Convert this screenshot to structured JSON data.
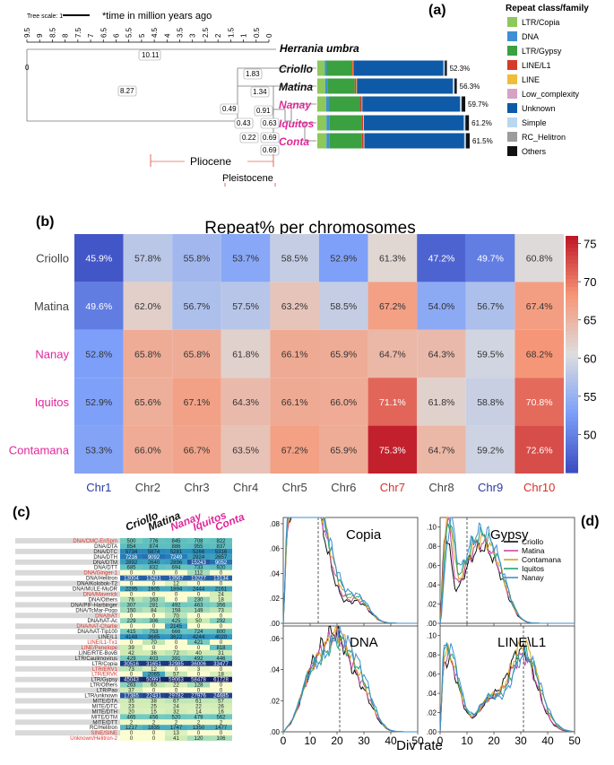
{
  "panel_a": {
    "label": "(a)",
    "tree_scale_label": "Tree scale: 1",
    "time_note": "*time in million years ago",
    "axis_ticks": [
      "9.5",
      "9",
      "8.5",
      "8",
      "7.5",
      "7",
      "6.5",
      "6",
      "5.5",
      "5",
      "4.5",
      "4",
      "3.5",
      "3",
      "2.5",
      "2",
      "1.5",
      "1",
      "0.5",
      "0"
    ],
    "outgroup": "Herrania umbra",
    "taxa": [
      {
        "name": "Criollo",
        "color": "#111111",
        "pct": "52.3%",
        "segments": {
          "LTR/Copia": 3.0,
          "DNA": 0.8,
          "LTR/Gypsy": 10.0,
          "LINE/L1": 0.5,
          "LINE": 0.2,
          "Low_complexity": 0.1,
          "Unknown": 36.3,
          "Simple": 0.5,
          "RC_Helitron": 0.1,
          "Others": 0.8
        }
      },
      {
        "name": "Matina",
        "color": "#111111",
        "pct": "56.3%",
        "segments": {
          "LTR/Copia": 3.2,
          "DNA": 0.9,
          "LTR/Gypsy": 11.0,
          "LINE/L1": 0.6,
          "LINE": 0.2,
          "Low_complexity": 0.1,
          "Unknown": 38.7,
          "Simple": 0.6,
          "RC_Helitron": 0.1,
          "Others": 0.9
        }
      },
      {
        "name": "Nanay",
        "color": "#e0289a",
        "pct": "59.7%",
        "segments": {
          "LTR/Copia": 3.6,
          "DNA": 1.1,
          "LTR/Gypsy": 12.5,
          "LINE/L1": 0.7,
          "LINE": 0.2,
          "Low_complexity": 0.1,
          "Unknown": 39.4,
          "Simple": 0.6,
          "RC_Helitron": 0.1,
          "Others": 1.4
        }
      },
      {
        "name": "Iquitos",
        "color": "#e0289a",
        "pct": "61.2%",
        "segments": {
          "LTR/Copia": 3.7,
          "DNA": 1.1,
          "LTR/Gypsy": 13.0,
          "LINE/L1": 0.7,
          "LINE": 0.2,
          "Low_complexity": 0.1,
          "Unknown": 40.3,
          "Simple": 0.6,
          "RC_Helitron": 0.1,
          "Others": 1.4
        }
      },
      {
        "name": "Conta",
        "color": "#e0289a",
        "pct": "61.5%",
        "segments": {
          "LTR/Copia": 3.7,
          "DNA": 1.1,
          "LTR/Gypsy": 13.2,
          "LINE/L1": 0.7,
          "LINE": 0.2,
          "Low_complexity": 0.1,
          "Unknown": 40.3,
          "Simple": 0.6,
          "RC_Helitron": 0.1,
          "Others": 1.5
        }
      }
    ],
    "node_labels": [
      "10.11",
      "8.27",
      "1.83",
      "1.34",
      "0.91",
      "0.49",
      "0.43",
      "0.63",
      "0.22",
      "0.69",
      "0.69",
      "0"
    ],
    "epochs": [
      "Pliocene",
      "Pleistocene"
    ],
    "legend_title": "Repeat class/family",
    "legend": [
      {
        "name": "LTR/Copia",
        "color": "#8cc85a"
      },
      {
        "name": "DNA",
        "color": "#3f8fd2"
      },
      {
        "name": "LTR/Gypsy",
        "color": "#3aa040"
      },
      {
        "name": "LINE/L1",
        "color": "#d33b2a"
      },
      {
        "name": "LINE",
        "color": "#f0bd3a"
      },
      {
        "name": "Low_complexity",
        "color": "#d6a2c6"
      },
      {
        "name": "Unknown",
        "color": "#0e5aa7"
      },
      {
        "name": "Simple",
        "color": "#b9d7ef"
      },
      {
        "name": "RC_Helitron",
        "color": "#9c9c9c"
      },
      {
        "name": "Others",
        "color": "#111111"
      }
    ]
  },
  "panel_b": {
    "label": "(b)",
    "chart_data": {
      "type": "heatmap",
      "title": "Repeat% per chromosomes",
      "rows": [
        {
          "name": "Criollo",
          "color": "#444444"
        },
        {
          "name": "Matina",
          "color": "#444444"
        },
        {
          "name": "Nanay",
          "color": "#e0289a"
        },
        {
          "name": "Iquitos",
          "color": "#e0289a"
        },
        {
          "name": "Contamana",
          "color": "#e0289a"
        }
      ],
      "columns": [
        {
          "name": "Chr1",
          "color": "#2b3b9e"
        },
        {
          "name": "Chr2",
          "color": "#444444"
        },
        {
          "name": "Chr3",
          "color": "#444444"
        },
        {
          "name": "Chr4",
          "color": "#444444"
        },
        {
          "name": "Chr5",
          "color": "#444444"
        },
        {
          "name": "Chr6",
          "color": "#444444"
        },
        {
          "name": "Chr7",
          "color": "#d6302a"
        },
        {
          "name": "Chr8",
          "color": "#444444"
        },
        {
          "name": "Chr9",
          "color": "#2b3b9e"
        },
        {
          "name": "Chr10",
          "color": "#d6302a"
        }
      ],
      "values": [
        [
          45.9,
          57.8,
          55.8,
          53.7,
          58.5,
          52.9,
          61.3,
          47.2,
          49.7,
          60.8
        ],
        [
          49.6,
          62.0,
          56.7,
          57.5,
          63.2,
          58.5,
          67.2,
          54.0,
          56.7,
          67.4
        ],
        [
          52.8,
          65.8,
          65.8,
          61.8,
          66.1,
          65.9,
          64.7,
          64.3,
          59.5,
          68.2
        ],
        [
          52.9,
          65.6,
          67.1,
          64.3,
          66.1,
          66.0,
          71.1,
          61.8,
          58.8,
          70.8
        ],
        [
          53.3,
          66.0,
          66.7,
          63.5,
          67.2,
          65.9,
          75.3,
          64.7,
          59.2,
          72.6
        ]
      ],
      "cell_labels": [
        [
          "45.9%",
          "57.8%",
          "55.8%",
          "53.7%",
          "58.5%",
          "52.9%",
          "61.3%",
          "47.2%",
          "49.7%",
          "60.8%"
        ],
        [
          "49.6%",
          "62.0%",
          "56.7%",
          "57.5%",
          "63.2%",
          "58.5%",
          "67.2%",
          "54.0%",
          "56.7%",
          "67.4%"
        ],
        [
          "52.8%",
          "65.8%",
          "65.8%",
          "61.8%",
          "66.1%",
          "65.9%",
          "64.7%",
          "64.3%",
          "59.5%",
          "68.2%"
        ],
        [
          "52.9%",
          "65.6%",
          "67.1%",
          "64.3%",
          "66.1%",
          "66.0%",
          "71.1%",
          "61.8%",
          "58.8%",
          "70.8%"
        ],
        [
          "53.3%",
          "66.0%",
          "66.7%",
          "63.5%",
          "67.2%",
          "65.9%",
          "75.3%",
          "64.7%",
          "59.2%",
          "72.6%"
        ]
      ],
      "colorbar_ticks": [
        "75",
        "70",
        "65",
        "60",
        "55",
        "50"
      ],
      "colorbar_range": [
        45,
        76
      ]
    }
  },
  "panel_c": {
    "label": "(c)",
    "columns": [
      {
        "name": "Criollo",
        "color": "#111111"
      },
      {
        "name": "Matina",
        "color": "#111111"
      },
      {
        "name": "Nanay",
        "color": "#e0289a"
      },
      {
        "name": "Iquitos",
        "color": "#e0289a"
      },
      {
        "name": "Conta",
        "color": "#e0289a"
      }
    ],
    "rows": [
      {
        "name": "DNA/CMC-EnSpm",
        "red": true,
        "shade": true,
        "v": [
          "500",
          "776",
          "845",
          "708",
          "822"
        ]
      },
      {
        "name": "DNA/DTA",
        "red": false,
        "shade": false,
        "v": [
          "854",
          "874",
          "886",
          "955",
          "837"
        ]
      },
      {
        "name": "DNA/DTC",
        "red": false,
        "shade": true,
        "v": [
          "5734",
          "5874",
          "5281",
          "5266",
          "5316"
        ]
      },
      {
        "name": "DNA/DTH",
        "red": false,
        "shade": false,
        "v": [
          "7216",
          "9092",
          "7249",
          "2924",
          "2657"
        ]
      },
      {
        "name": "DNA/DTM",
        "red": false,
        "shade": true,
        "v": [
          "2892",
          "2640",
          "2896",
          "15243",
          "9052"
        ]
      },
      {
        "name": "DNA/DTT",
        "red": false,
        "shade": false,
        "v": [
          "685",
          "832",
          "694",
          "733",
          "920"
        ]
      },
      {
        "name": "DNA/Ginger-1",
        "red": true,
        "shade": true,
        "v": [
          "0",
          "0",
          "0",
          "112",
          "0"
        ]
      },
      {
        "name": "DNA/Helitron",
        "red": false,
        "shade": false,
        "v": [
          "13004",
          "13431",
          "13567",
          "13227",
          "13134"
        ]
      },
      {
        "name": "DNA/Kolobok-T2",
        "red": false,
        "shade": true,
        "v": [
          "0",
          "0",
          "12",
          "0",
          "0"
        ]
      },
      {
        "name": "DNA/MULE-MuDR",
        "red": false,
        "shade": false,
        "v": [
          "2295",
          "1905",
          "1894",
          "2444",
          "2161"
        ]
      },
      {
        "name": "DNA/Maverick",
        "red": true,
        "shade": true,
        "v": [
          "0",
          "0",
          "0",
          "0",
          "24"
        ]
      },
      {
        "name": "DNA/Others",
        "red": false,
        "shade": false,
        "v": [
          "76",
          "163",
          "0",
          "230",
          "18"
        ]
      },
      {
        "name": "DNA/PIF-Harbinger",
        "red": false,
        "shade": true,
        "v": [
          "307",
          "281",
          "492",
          "463",
          "356"
        ]
      },
      {
        "name": "DNA/TcMar-Pogo",
        "red": false,
        "shade": false,
        "v": [
          "150",
          "84",
          "158",
          "149",
          "73"
        ]
      },
      {
        "name": "DNA/hAT",
        "red": true,
        "shade": true,
        "v": [
          "0",
          "0",
          "70",
          "0",
          "0"
        ]
      },
      {
        "name": "DNA/hAT-Ac",
        "red": false,
        "shade": false,
        "v": [
          "229",
          "306",
          "425",
          "50",
          "292"
        ]
      },
      {
        "name": "DNA/hAT-Charlie",
        "red": true,
        "shade": true,
        "v": [
          "0",
          "0",
          "2145",
          "0",
          "0"
        ]
      },
      {
        "name": "DNA/hAT-Tip100",
        "red": false,
        "shade": false,
        "v": [
          "415",
          "753",
          "666",
          "724",
          "800"
        ]
      },
      {
        "name": "LINE/L1",
        "red": false,
        "shade": true,
        "v": [
          "4148",
          "3685",
          "3622",
          "4244",
          "4020"
        ]
      },
      {
        "name": "LINE/L1-Tx1",
        "red": true,
        "shade": false,
        "v": [
          "0",
          "70",
          "0",
          "421",
          "0"
        ]
      },
      {
        "name": "LINE/Penelope",
        "red": true,
        "shade": true,
        "v": [
          "39",
          "0",
          "0",
          "0",
          "818"
        ]
      },
      {
        "name": "LINE/RTE-BovB",
        "red": false,
        "shade": false,
        "v": [
          "42",
          "36",
          "72",
          "40",
          "31"
        ]
      },
      {
        "name": "LTR/Caulimovirus",
        "red": false,
        "shade": true,
        "v": [
          "429",
          "403",
          "391",
          "492",
          "446"
        ]
      },
      {
        "name": "LTR/Copia",
        "red": false,
        "shade": false,
        "v": [
          "30516",
          "31651",
          "32985",
          "36006",
          "33477"
        ]
      },
      {
        "name": "LTR/ERV1",
        "red": true,
        "shade": true,
        "v": [
          "73",
          "12",
          "0",
          "3",
          "0"
        ]
      },
      {
        "name": "LTR/ERVK",
        "red": true,
        "shade": false,
        "v": [
          "0",
          "2065",
          "57",
          "0",
          "18"
        ]
      },
      {
        "name": "LTR/Gypsy",
        "red": false,
        "shade": true,
        "v": [
          "45043",
          "50991",
          "59063",
          "58478",
          "61728"
        ]
      },
      {
        "name": "LTR/Others",
        "red": false,
        "shade": false,
        "v": [
          "263",
          "65",
          "22",
          "128",
          "0"
        ]
      },
      {
        "name": "LTR/Pao",
        "red": false,
        "shade": true,
        "v": [
          "37",
          "0",
          "0",
          "0",
          "0"
        ]
      },
      {
        "name": "LTR/unknown",
        "red": false,
        "shade": false,
        "v": [
          "17385",
          "22431",
          "29782",
          "27976",
          "24685"
        ]
      },
      {
        "name": "MITE/DTA",
        "red": false,
        "shade": true,
        "v": [
          "35",
          "38",
          "67",
          "61",
          "57"
        ]
      },
      {
        "name": "MITE/DTC",
        "red": false,
        "shade": false,
        "v": [
          "23",
          "25",
          "24",
          "22",
          "26"
        ]
      },
      {
        "name": "MITE/DTH",
        "red": false,
        "shade": true,
        "v": [
          "20",
          "15",
          "32",
          "14",
          "16"
        ]
      },
      {
        "name": "MITE/DTM",
        "red": false,
        "shade": false,
        "v": [
          "465",
          "456",
          "520",
          "479",
          "562"
        ]
      },
      {
        "name": "MITE/DTT",
        "red": false,
        "shade": true,
        "v": [
          "2",
          "2",
          "2",
          "2",
          "2"
        ]
      },
      {
        "name": "RC/Helitron",
        "red": false,
        "shade": false,
        "v": [
          "1217",
          "1835",
          "1747",
          "1350",
          "1477"
        ]
      },
      {
        "name": "SINE/SINE",
        "red": true,
        "shade": true,
        "v": [
          "0",
          "0",
          "13",
          "0",
          "0"
        ]
      },
      {
        "name": "Unknown/Helitron-2",
        "red": true,
        "shade": false,
        "v": [
          "0",
          "0",
          "41",
          "120",
          "106"
        ]
      }
    ]
  },
  "panel_d": {
    "label": "(d)",
    "xlabel": "Div rate",
    "x_ticks": [
      "0",
      "10",
      "20",
      "30",
      "40",
      "50"
    ],
    "legend": [
      {
        "name": "Criollo",
        "color": "#111111"
      },
      {
        "name": "Matina",
        "color": "#c64aa6"
      },
      {
        "name": "Contamana",
        "color": "#d9a21c"
      },
      {
        "name": "Iquitos",
        "color": "#20a37a"
      },
      {
        "name": "Nanay",
        "color": "#3f8fd2"
      }
    ],
    "chart_data": [
      {
        "type": "line",
        "title": "Copia",
        "xlim": [
          0,
          50
        ],
        "y_ticks": [
          ".00",
          ".02",
          ".04",
          ".06",
          ".08"
        ],
        "ylim": [
          0,
          0.085
        ],
        "dashed_x": 13,
        "peak": 13,
        "peak_y": [
          0.074,
          0.078,
          0.081,
          0.078,
          0.077
        ],
        "width": 5.5,
        "shoulder": [
          [
            4,
            0.055
          ],
          [
            7,
            0.06
          ],
          [
            28,
            0.018
          ]
        ]
      },
      {
        "type": "line",
        "title": "Gypsy",
        "xlim": [
          0,
          50
        ],
        "y_ticks": [
          ".00",
          ".02",
          ".04",
          ".06",
          ".08",
          ".10"
        ],
        "ylim": [
          0,
          0.11
        ],
        "dashed_x": 10,
        "peak": 3,
        "peak_y": [
          0.086,
          0.098,
          0.105,
          0.095,
          0.092
        ],
        "width": 1.8,
        "shoulder": [
          [
            10,
            0.045
          ],
          [
            16,
            0.06
          ],
          [
            22,
            0.04
          ]
        ]
      },
      {
        "type": "line",
        "title": "DNA",
        "xlim": [
          0,
          50
        ],
        "y_ticks": [
          ".00",
          ".02",
          ".04",
          ".06"
        ],
        "ylim": [
          0,
          0.068
        ],
        "dashed_x": 21,
        "peak": 20,
        "peak_y": [
          0.062,
          0.06,
          0.061,
          0.057,
          0.06
        ],
        "width": 5.5,
        "shoulder": [
          [
            10,
            0.028
          ],
          [
            30,
            0.02
          ]
        ]
      },
      {
        "type": "line",
        "title": "LINE\\L1",
        "xlim": [
          0,
          50
        ],
        "y_ticks": [
          ".00",
          ".02",
          ".04",
          ".06",
          ".08",
          ".10"
        ],
        "ylim": [
          0,
          0.11
        ],
        "dashed_x": 31,
        "peak": 31,
        "peak_y": [
          0.085,
          0.078,
          0.09,
          0.082,
          0.08
        ],
        "width": 5.5,
        "shoulder": [
          [
            2,
            0.05
          ],
          [
            4,
            0.035
          ],
          [
            18,
            0.03
          ]
        ]
      }
    ]
  }
}
